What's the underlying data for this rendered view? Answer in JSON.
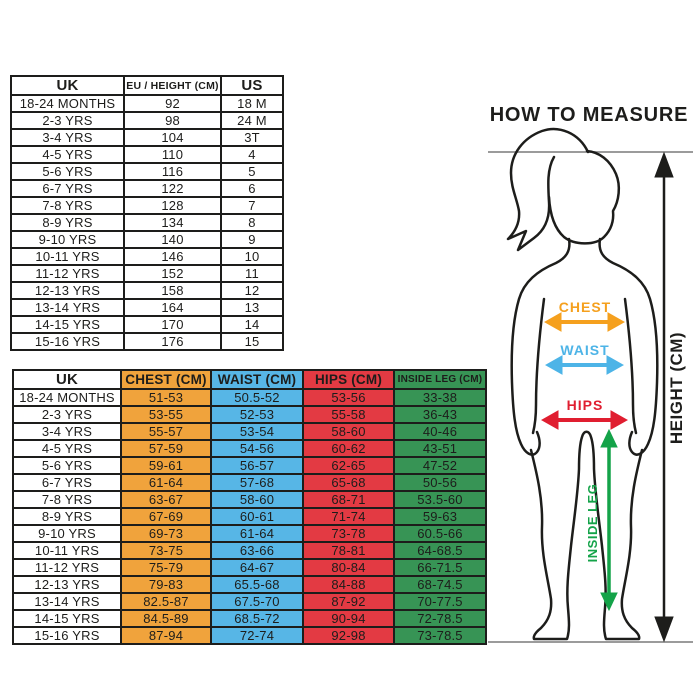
{
  "size_conversion_table": {
    "headers": [
      "UK",
      "EU / HEIGHT (CM)",
      "US"
    ],
    "rows": [
      [
        "18-24 MONTHS",
        "92",
        "18 M"
      ],
      [
        "2-3 YRS",
        "98",
        "24 M"
      ],
      [
        "3-4 YRS",
        "104",
        "3T"
      ],
      [
        "4-5 YRS",
        "110",
        "4"
      ],
      [
        "5-6 YRS",
        "116",
        "5"
      ],
      [
        "6-7 YRS",
        "122",
        "6"
      ],
      [
        "7-8 YRS",
        "128",
        "7"
      ],
      [
        "8-9 YRS",
        "134",
        "8"
      ],
      [
        "9-10 YRS",
        "140",
        "9"
      ],
      [
        "10-11 YRS",
        "146",
        "10"
      ],
      [
        "11-12 YRS",
        "152",
        "11"
      ],
      [
        "12-13 YRS",
        "158",
        "12"
      ],
      [
        "13-14 YRS",
        "164",
        "13"
      ],
      [
        "14-15 YRS",
        "170",
        "14"
      ],
      [
        "15-16 YRS",
        "176",
        "15"
      ]
    ]
  },
  "measurements_table": {
    "headers": [
      "UK",
      "CHEST (CM)",
      "WAIST (CM)",
      "HIPS (CM)",
      "INSIDE LEG (CM)"
    ],
    "column_colors": [
      "#ffffff",
      "#F0A33C",
      "#57B6E6",
      "#E33A43",
      "#379455"
    ],
    "rows": [
      [
        "18-24 MONTHS",
        "51-53",
        "50.5-52",
        "53-56",
        "33-38"
      ],
      [
        "2-3 YRS",
        "53-55",
        "52-53",
        "55-58",
        "36-43"
      ],
      [
        "3-4 YRS",
        "55-57",
        "53-54",
        "58-60",
        "40-46"
      ],
      [
        "4-5 YRS",
        "57-59",
        "54-56",
        "60-62",
        "43-51"
      ],
      [
        "5-6 YRS",
        "59-61",
        "56-57",
        "62-65",
        "47-52"
      ],
      [
        "6-7 YRS",
        "61-64",
        "57-68",
        "65-68",
        "50-56"
      ],
      [
        "7-8 YRS",
        "63-67",
        "58-60",
        "68-71",
        "53.5-60"
      ],
      [
        "8-9 YRS",
        "67-69",
        "60-61",
        "71-74",
        "59-63"
      ],
      [
        "9-10 YRS",
        "69-73",
        "61-64",
        "73-78",
        "60.5-66"
      ],
      [
        "10-11 YRS",
        "73-75",
        "63-66",
        "78-81",
        "64-68.5"
      ],
      [
        "11-12 YRS",
        "75-79",
        "64-67",
        "80-84",
        "66-71.5"
      ],
      [
        "12-13 YRS",
        "79-83",
        "65.5-68",
        "84-88",
        "68-74.5"
      ],
      [
        "13-14 YRS",
        "82.5-87",
        "67.5-70",
        "87-92",
        "70-77.5"
      ],
      [
        "14-15 YRS",
        "84.5-89",
        "68.5-72",
        "90-94",
        "72-78.5"
      ],
      [
        "15-16 YRS",
        "87-94",
        "72-74",
        "92-98",
        "73-78.5"
      ]
    ]
  },
  "how_to_measure": {
    "title": "HOW TO MEASURE",
    "labels": {
      "chest": "CHEST",
      "waist": "WAIST",
      "hips": "HIPS",
      "inside_leg": "INSIDE LEG",
      "height": "HEIGHT (CM)"
    },
    "colors": {
      "chest": "#F5A01E",
      "waist": "#4DB4E7",
      "hips": "#E01E30",
      "inside_leg": "#14A349",
      "ink": "#1D1D1B",
      "guide": "#9B9B9B"
    }
  }
}
